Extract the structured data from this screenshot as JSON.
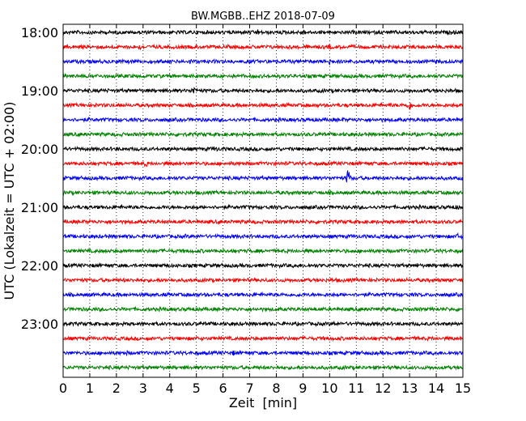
{
  "chart_data": {
    "type": "line",
    "title": "BW.MGBB..EHZ 2018-07-09",
    "xlabel": "Zeit  [min]",
    "ylabel": "UTC (Lokalzeit = UTC + 02:00)",
    "xlim": [
      0,
      15
    ],
    "x_ticks": [
      "0",
      "1",
      "2",
      "3",
      "4",
      "5",
      "6",
      "7",
      "8",
      "9",
      "10",
      "11",
      "12",
      "13",
      "14",
      "15"
    ],
    "y_ticks": [
      "18:00",
      "19:00",
      "20:00",
      "21:00",
      "22:00",
      "23:00"
    ],
    "grid": "vertical dotted at each minute",
    "trace_colors": [
      "#000000",
      "#ff0000",
      "#0000ff",
      "#008000"
    ],
    "traces": [
      {
        "start": "18:00",
        "color": "#000000",
        "events": [
          {
            "t": 7.3,
            "amp": 4
          },
          {
            "t": 9.0,
            "amp": 5
          },
          {
            "t": 14.6,
            "amp": 4
          }
        ]
      },
      {
        "start": "18:15",
        "color": "#ff0000",
        "events": [
          {
            "t": 2.9,
            "amp": 4
          },
          {
            "t": 10.0,
            "amp": 4
          }
        ]
      },
      {
        "start": "18:30",
        "color": "#0000ff",
        "events": [
          {
            "t": 4.8,
            "amp": 4
          },
          {
            "t": 7.0,
            "amp": 3
          },
          {
            "t": 10.0,
            "amp": 5
          }
        ]
      },
      {
        "start": "18:45",
        "color": "#008000",
        "events": [
          {
            "t": 2.5,
            "amp": 3
          },
          {
            "t": 7.5,
            "amp": 3
          }
        ]
      },
      {
        "start": "19:00",
        "color": "#000000",
        "events": [
          {
            "t": 4.9,
            "amp": 6
          },
          {
            "t": 1.5,
            "amp": 3
          }
        ]
      },
      {
        "start": "19:15",
        "color": "#ff0000",
        "events": [
          {
            "t": 13.0,
            "amp": 7
          },
          {
            "t": 12.3,
            "amp": 3
          }
        ]
      },
      {
        "start": "19:30",
        "color": "#0000ff",
        "events": [
          {
            "t": 1.0,
            "amp": 3
          },
          {
            "t": 10.5,
            "amp": 3
          }
        ]
      },
      {
        "start": "19:45",
        "color": "#008000",
        "events": [
          {
            "t": 7.6,
            "amp": 3
          },
          {
            "t": 12.6,
            "amp": 3
          }
        ]
      },
      {
        "start": "20:00",
        "color": "#000000",
        "events": [
          {
            "t": 5.7,
            "amp": 5
          },
          {
            "t": 2.0,
            "amp": 3
          }
        ]
      },
      {
        "start": "20:15",
        "color": "#ff0000",
        "events": [
          {
            "t": 3.1,
            "amp": 5
          },
          {
            "t": 6.3,
            "amp": 3
          }
        ]
      },
      {
        "start": "20:30",
        "color": "#0000ff",
        "events": [
          {
            "t": 10.7,
            "amp": 26
          },
          {
            "t": 11.6,
            "amp": 3
          }
        ]
      },
      {
        "start": "20:45",
        "color": "#008000",
        "events": [
          {
            "t": 2.5,
            "amp": 3
          },
          {
            "t": 10.0,
            "amp": 3
          }
        ]
      },
      {
        "start": "21:00",
        "color": "#000000",
        "events": [
          {
            "t": 7.0,
            "amp": 3
          },
          {
            "t": 14.8,
            "amp": 4
          }
        ]
      },
      {
        "start": "21:15",
        "color": "#ff0000",
        "events": [
          {
            "t": 7.0,
            "amp": 3
          }
        ]
      },
      {
        "start": "21:30",
        "color": "#0000ff",
        "events": [
          {
            "t": 4.6,
            "amp": 3
          },
          {
            "t": 8.0,
            "amp": 3
          },
          {
            "t": 14.8,
            "amp": 4
          }
        ]
      },
      {
        "start": "21:45",
        "color": "#008000",
        "events": [
          {
            "t": 11.0,
            "amp": 3
          }
        ]
      },
      {
        "start": "22:00",
        "color": "#000000",
        "events": [
          {
            "t": 8.7,
            "amp": 4
          },
          {
            "t": 13.3,
            "amp": 3
          }
        ]
      },
      {
        "start": "22:15",
        "color": "#ff0000",
        "events": [
          {
            "t": 2.3,
            "amp": 3
          },
          {
            "t": 10.1,
            "amp": 3
          }
        ]
      },
      {
        "start": "22:30",
        "color": "#0000ff",
        "events": [
          {
            "t": 8.8,
            "amp": 3
          }
        ]
      },
      {
        "start": "22:45",
        "color": "#008000",
        "events": [
          {
            "t": 3.8,
            "amp": 3
          },
          {
            "t": 8.5,
            "amp": 3
          }
        ]
      },
      {
        "start": "23:00",
        "color": "#000000",
        "events": [
          {
            "t": 10.2,
            "amp": 4
          },
          {
            "t": 6.8,
            "amp": 3
          }
        ]
      },
      {
        "start": "23:15",
        "color": "#ff0000",
        "events": [
          {
            "t": 5.0,
            "amp": 3
          }
        ]
      },
      {
        "start": "23:30",
        "color": "#0000ff",
        "events": [
          {
            "t": 6.4,
            "amp": 4
          },
          {
            "t": 2.4,
            "amp": 3
          }
        ]
      },
      {
        "start": "23:45",
        "color": "#008000",
        "events": [
          {
            "t": 3.0,
            "amp": 3
          }
        ]
      }
    ]
  }
}
